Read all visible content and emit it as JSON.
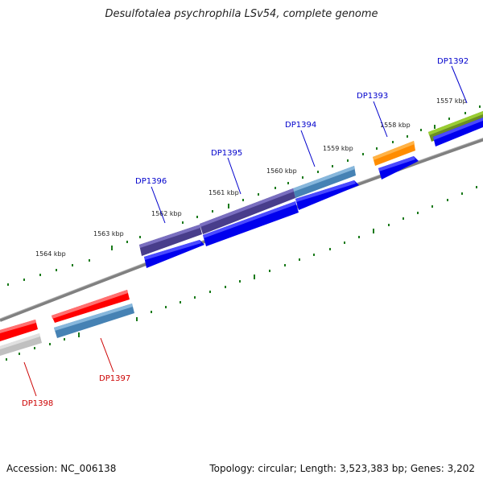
{
  "title": "Desulfotalea psychrophila LSv54, complete genome",
  "accession_text": "Accession: NC_006138",
  "summary_text": "Topology: circular; Length: 3,523,383 bp; Genes: 3,202",
  "scale_labels": [
    "1557 kbp",
    "1558 kbp",
    "1559 kbp",
    "1560 kbp",
    "1561 kbp",
    "1562 kbp",
    "1563 kbp",
    "1564 kbp"
  ],
  "genes": [
    {
      "name": "DP1392",
      "color": "#0000cc",
      "strand": "forward",
      "fill": "#6b8e23"
    },
    {
      "name": "DP1393",
      "color": "#0000cc",
      "strand": "forward",
      "fill": "#ff8c00"
    },
    {
      "name": "DP1394",
      "color": "#0000cc",
      "strand": "forward",
      "fill": "#4682b4"
    },
    {
      "name": "DP1395",
      "color": "#0000cc",
      "strand": "forward",
      "fill": "#483d8b"
    },
    {
      "name": "DP1396",
      "color": "#0000cc",
      "strand": "forward",
      "fill": "#483d8b"
    },
    {
      "name": "DP1397",
      "color": "#cc0000",
      "strand": "reverse",
      "fill": "#ff0000"
    },
    {
      "name": "DP1398",
      "color": "#cc0000",
      "strand": "reverse",
      "fill": "#ff0000"
    }
  ],
  "colors": {
    "forward_cds": "#0000ee",
    "reverse_cds": "#4682b4",
    "rna_gray": "#c0c0c0",
    "backbone": "#808080",
    "tick": "#1a7a1a"
  }
}
